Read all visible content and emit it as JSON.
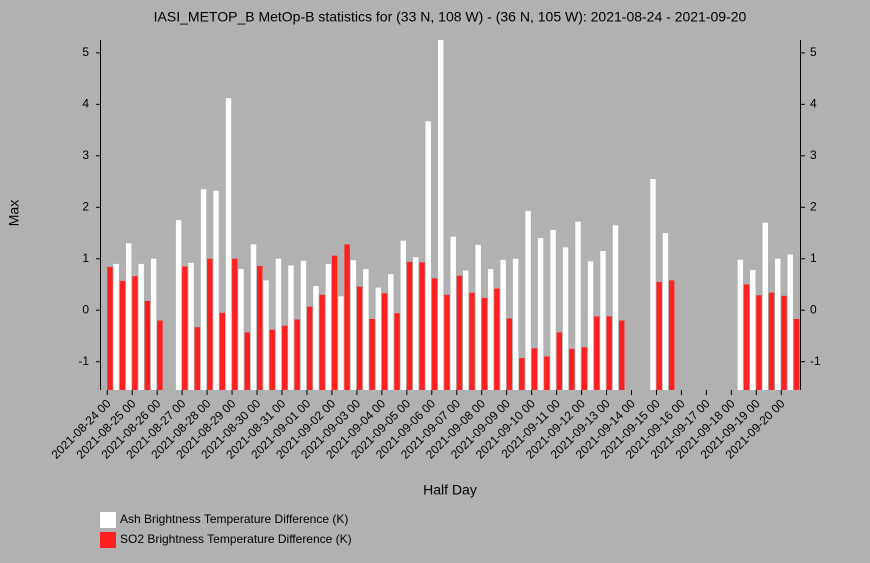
{
  "chart_data": {
    "type": "bar",
    "title": "IASI_METOP_B MetOp-B statistics for (33 N, 108 W) - (36 N, 105 W): 2021-08-24 - 2021-09-20",
    "x_label": "Half Day",
    "y_label": "Max",
    "categories": [
      "2021-08-24 00",
      null,
      "2021-08-25 00",
      null,
      "2021-08-26 00",
      null,
      "2021-08-27 00",
      null,
      "2021-08-28 00",
      null,
      "2021-08-29 00",
      null,
      "2021-08-30 00",
      null,
      "2021-08-31 00",
      null,
      "2021-09-01 00",
      null,
      "2021-09-02 00",
      null,
      "2021-09-03 00",
      null,
      "2021-09-04 00",
      null,
      "2021-09-05 00",
      null,
      "2021-09-06 00",
      null,
      "2021-09-07 00",
      null,
      "2021-09-08 00",
      null,
      "2021-09-09 00",
      null,
      "2021-09-10 00",
      null,
      "2021-09-11 00",
      null,
      "2021-09-12 00",
      null,
      "2021-09-13 00",
      null,
      "2021-09-14 00",
      null,
      "2021-09-15 00",
      null,
      "2021-09-16 00",
      null,
      "2021-09-17 00",
      null,
      "2021-09-18 00",
      null,
      "2021-09-19 00",
      null,
      "2021-09-20 00",
      null
    ],
    "series": [
      {
        "name": "Ash Brightness Temperature Difference (K)",
        "color": "#ffffff",
        "values": [
          null,
          0.9,
          1.3,
          0.9,
          1.0,
          null,
          1.75,
          0.92,
          2.35,
          2.32,
          4.12,
          0.8,
          1.28,
          0.58,
          1.0,
          0.87,
          0.96,
          0.47,
          0.9,
          0.27,
          0.97,
          0.8,
          0.44,
          0.7,
          1.35,
          1.03,
          3.67,
          5.25,
          1.43,
          0.77,
          1.27,
          0.8,
          0.98,
          1.0,
          1.93,
          1.4,
          1.56,
          1.22,
          1.72,
          0.95,
          1.15,
          1.65,
          null,
          null,
          2.55,
          1.5,
          null,
          null,
          null,
          null,
          null,
          0.98,
          0.78,
          1.7,
          1.0,
          1.08
        ]
      },
      {
        "name": "SO2 Brightness Temperature Difference (K)",
        "color": "#ff2020",
        "values": [
          0.84,
          0.57,
          0.66,
          0.18,
          -0.2,
          null,
          0.85,
          -0.33,
          1.0,
          -0.05,
          1.0,
          -0.43,
          0.86,
          -0.38,
          -0.3,
          -0.18,
          0.07,
          0.3,
          1.06,
          1.28,
          0.46,
          -0.17,
          0.33,
          -0.06,
          0.94,
          0.93,
          0.62,
          0.3,
          0.67,
          0.34,
          0.24,
          0.42,
          -0.16,
          -0.93,
          -0.74,
          -0.9,
          -0.43,
          -0.75,
          -0.72,
          -0.12,
          -0.12,
          -0.2,
          null,
          null,
          0.55,
          0.58,
          null,
          null,
          null,
          null,
          null,
          0.5,
          0.29,
          0.34,
          0.28,
          -0.17
        ]
      }
    ],
    "ylim": [
      -1.55,
      5.25
    ],
    "yticks": [
      -1,
      0,
      1,
      2,
      3,
      4,
      5
    ],
    "grid": false,
    "legend": "bottom-left"
  }
}
